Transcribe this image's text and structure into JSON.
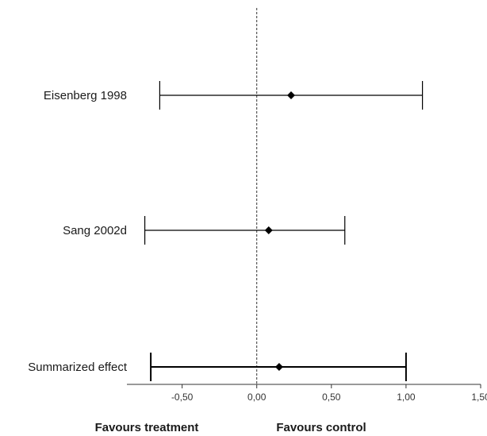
{
  "chart_data": {
    "type": "forest",
    "x_label_left": "Favours treatment",
    "x_label_right": "Favours control",
    "xlim": [
      -0.87,
      1.5
    ],
    "xticks": [
      -0.5,
      0.0,
      0.5,
      1.0,
      1.5
    ],
    "xtick_labels": [
      "-0,50",
      "0,00",
      "0,50",
      "1,00",
      "1,50"
    ],
    "reference_line": 0.0,
    "rows": [
      {
        "label": "Eisenberg 1998",
        "estimate": 0.23,
        "ci_low": -0.65,
        "ci_high": 1.11
      },
      {
        "label": "Sang 2002d",
        "estimate": 0.08,
        "ci_low": -0.75,
        "ci_high": 0.59
      },
      {
        "label": "Summarized effect",
        "estimate": 0.15,
        "ci_low": -0.71,
        "ci_high": 1.0
      }
    ],
    "marker_color": "#000000",
    "line_color": "#000000"
  }
}
